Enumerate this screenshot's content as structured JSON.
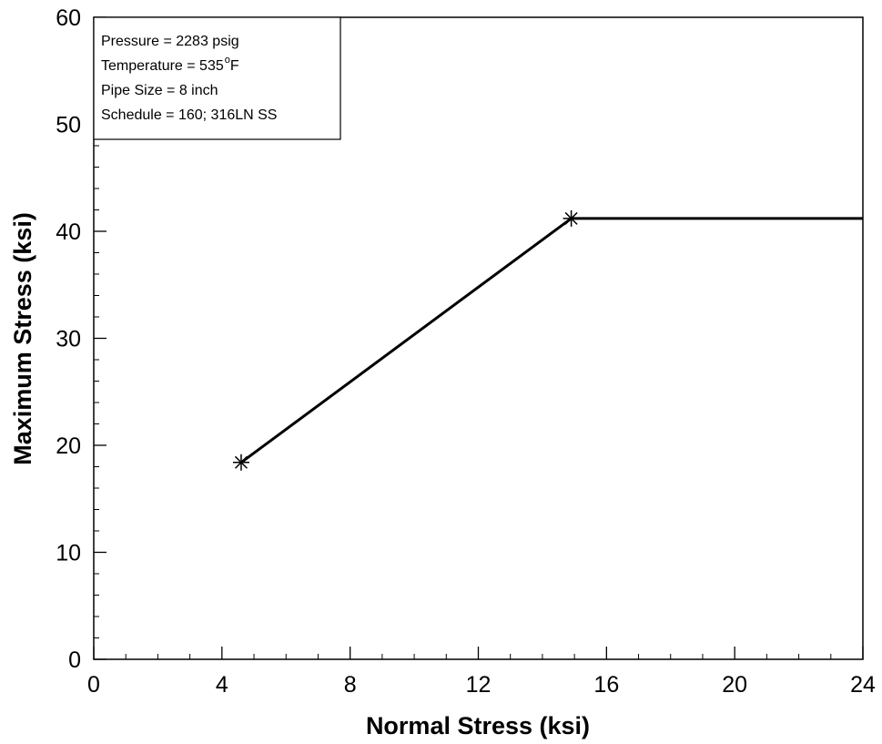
{
  "chart_data": {
    "type": "line",
    "title": "",
    "xlabel": "Normal Stress (ksi)",
    "ylabel": "Maximum Stress (ksi)",
    "xlim": [
      0,
      24
    ],
    "ylim": [
      0,
      60
    ],
    "x_ticks": [
      "0",
      "4",
      "8",
      "12",
      "16",
      "20",
      "24"
    ],
    "y_ticks": [
      "0",
      "10",
      "20",
      "30",
      "40",
      "50",
      "60"
    ],
    "grid": false,
    "series": [
      {
        "points": [
          [
            4.6,
            18.4
          ],
          [
            14.9,
            41.2
          ],
          [
            24,
            41.2
          ]
        ],
        "markers": [
          [
            4.6,
            18.4
          ],
          [
            14.9,
            41.2
          ]
        ],
        "marker": "asterisk",
        "color": "#000000"
      }
    ],
    "annotations": {
      "pressure": "Pressure = 2283 psig",
      "temperature": "Temperature = 535",
      "temperature_deg": "o",
      "temperature_unit": "F",
      "pipe_size": "Pipe Size = 8 inch",
      "schedule": "Schedule = 160; 316LN SS"
    }
  }
}
